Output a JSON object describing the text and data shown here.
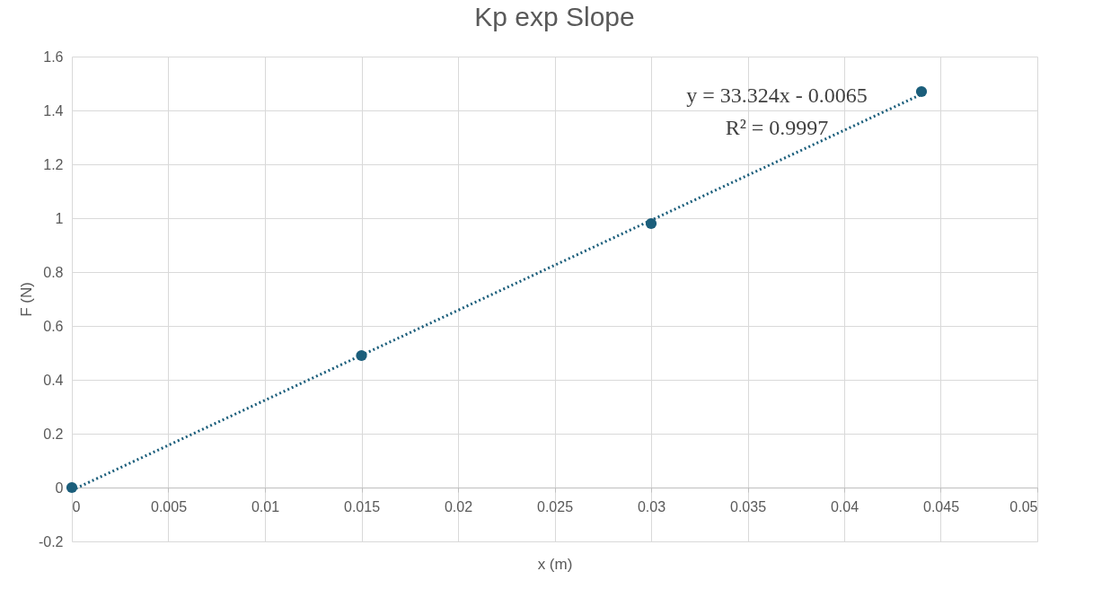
{
  "chart_data": {
    "type": "scatter",
    "title": "Kp exp Slope",
    "xlabel": "x (m)",
    "ylabel": "F (N)",
    "x": [
      0,
      0.015,
      0.03,
      0.044
    ],
    "series": [
      {
        "color": "#1b5e7b",
        "values": [
          0,
          0.49,
          0.98,
          1.47
        ],
        "marker": "circle"
      },
      {
        "type": "line",
        "color": "#1b5e7b",
        "x": [
          0,
          0.044
        ],
        "values": [
          -0.01,
          1.46
        ],
        "line_style": "dotted",
        "marker": "none"
      }
    ],
    "xlim": [
      0,
      0.05
    ],
    "xticks": [
      0,
      0.005,
      0.01,
      0.015,
      0.02,
      0.025,
      0.03,
      0.035,
      0.04,
      0.045,
      0.05
    ],
    "ylim": [
      -0.2,
      1.6
    ],
    "yticks": [
      -0.2,
      0,
      0.2,
      0.4,
      0.6,
      0.8,
      1,
      1.2,
      1.4,
      1.6
    ],
    "grid": true,
    "legend": false,
    "annotations": [
      "y = 33.324x - 0.0065",
      "R² = 0.9997"
    ]
  }
}
